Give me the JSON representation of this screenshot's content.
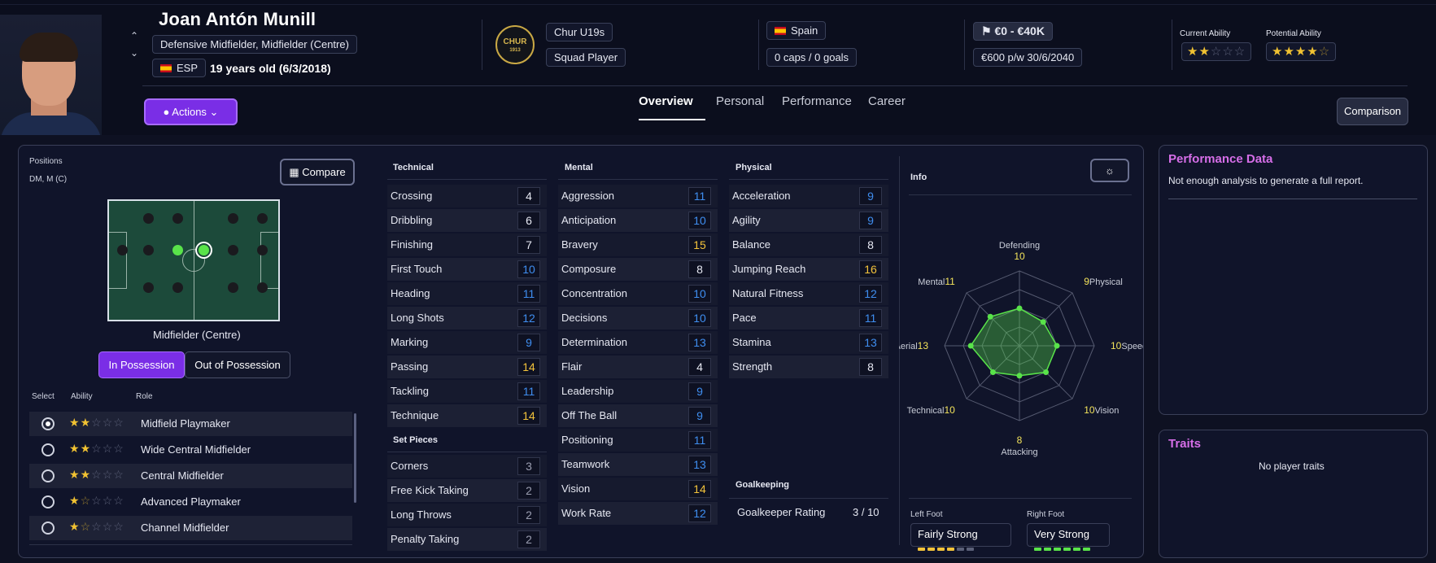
{
  "player": {
    "name": "Joan Antón Munill",
    "positions_full": "Defensive Midfielder, Midfielder (Centre)",
    "nationality_code": "ESP",
    "age": "19 years old (6/3/2018)",
    "club": "Chur U19s",
    "club_badge_text": "CHUR",
    "club_badge_year": "1913",
    "squad_status": "Squad Player",
    "nation": "Spain",
    "caps": "0 caps / 0 goals",
    "value": "€0 - €40K",
    "wage_contract": "€600 p/w 30/6/2040",
    "current_ability_label": "Current Ability",
    "potential_ability_label": "Potential Ability",
    "current_ability_stars": 2,
    "potential_ability_stars": 4.5
  },
  "header": {
    "actions_label": "Actions",
    "comparison_label": "Comparison",
    "tabs": [
      "Overview",
      "Personal",
      "Performance",
      "Career"
    ],
    "active_tab": "Overview"
  },
  "positions": {
    "title": "Positions",
    "value": "DM, M (C)",
    "compare_label": "Compare",
    "pitch_caption": "Midfielder (Centre)",
    "in_possession": "In Possession",
    "out_possession": "Out of Possession",
    "col_select": "Select",
    "col_ability": "Ability",
    "col_role": "Role",
    "roles": [
      {
        "name": "Midfield Playmaker",
        "stars": 2,
        "selected": true
      },
      {
        "name": "Wide Central Midfielder",
        "stars": 2,
        "selected": false
      },
      {
        "name": "Central Midfielder",
        "stars": 2,
        "selected": false
      },
      {
        "name": "Advanced Playmaker",
        "stars": 1.5,
        "selected": false
      },
      {
        "name": "Channel Midfielder",
        "stars": 1.5,
        "selected": false
      }
    ]
  },
  "technical": {
    "title": "Technical",
    "items": [
      {
        "name": "Crossing",
        "value": "4",
        "color": "#e6e8f2"
      },
      {
        "name": "Dribbling",
        "value": "6",
        "color": "#e6e8f2"
      },
      {
        "name": "Finishing",
        "value": "7",
        "color": "#e6e8f2"
      },
      {
        "name": "First Touch",
        "value": "10",
        "color": "#3f8ef0"
      },
      {
        "name": "Heading",
        "value": "11",
        "color": "#3f8ef0"
      },
      {
        "name": "Long Shots",
        "value": "12",
        "color": "#3f8ef0"
      },
      {
        "name": "Marking",
        "value": "9",
        "color": "#3f8ef0"
      },
      {
        "name": "Passing",
        "value": "14",
        "color": "#f3c33b"
      },
      {
        "name": "Tackling",
        "value": "11",
        "color": "#3f8ef0"
      },
      {
        "name": "Technique",
        "value": "14",
        "color": "#f3c33b"
      }
    ]
  },
  "set_pieces": {
    "title": "Set Pieces",
    "items": [
      {
        "name": "Corners",
        "value": "3",
        "color": "#9a9db0"
      },
      {
        "name": "Free Kick Taking",
        "value": "2",
        "color": "#9a9db0"
      },
      {
        "name": "Long Throws",
        "value": "2",
        "color": "#9a9db0"
      },
      {
        "name": "Penalty Taking",
        "value": "2",
        "color": "#9a9db0"
      }
    ]
  },
  "mental": {
    "title": "Mental",
    "items": [
      {
        "name": "Aggression",
        "value": "11",
        "color": "#3f8ef0"
      },
      {
        "name": "Anticipation",
        "value": "10",
        "color": "#3f8ef0"
      },
      {
        "name": "Bravery",
        "value": "15",
        "color": "#f3c33b"
      },
      {
        "name": "Composure",
        "value": "8",
        "color": "#e6e8f2"
      },
      {
        "name": "Concentration",
        "value": "10",
        "color": "#3f8ef0"
      },
      {
        "name": "Decisions",
        "value": "10",
        "color": "#3f8ef0"
      },
      {
        "name": "Determination",
        "value": "13",
        "color": "#3f8ef0"
      },
      {
        "name": "Flair",
        "value": "4",
        "color": "#e6e8f2"
      },
      {
        "name": "Leadership",
        "value": "9",
        "color": "#3f8ef0"
      },
      {
        "name": "Off The Ball",
        "value": "9",
        "color": "#3f8ef0"
      },
      {
        "name": "Positioning",
        "value": "11",
        "color": "#3f8ef0"
      },
      {
        "name": "Teamwork",
        "value": "13",
        "color": "#3f8ef0"
      },
      {
        "name": "Vision",
        "value": "14",
        "color": "#f3c33b"
      },
      {
        "name": "Work Rate",
        "value": "12",
        "color": "#3f8ef0"
      }
    ]
  },
  "physical": {
    "title": "Physical",
    "items": [
      {
        "name": "Acceleration",
        "value": "9",
        "color": "#3f8ef0"
      },
      {
        "name": "Agility",
        "value": "9",
        "color": "#3f8ef0"
      },
      {
        "name": "Balance",
        "value": "8",
        "color": "#e6e8f2"
      },
      {
        "name": "Jumping Reach",
        "value": "16",
        "color": "#f3c33b"
      },
      {
        "name": "Natural Fitness",
        "value": "12",
        "color": "#3f8ef0"
      },
      {
        "name": "Pace",
        "value": "11",
        "color": "#3f8ef0"
      },
      {
        "name": "Stamina",
        "value": "13",
        "color": "#3f8ef0"
      },
      {
        "name": "Strength",
        "value": "8",
        "color": "#e6e8f2"
      }
    ]
  },
  "goalkeeping": {
    "title": "Goalkeeping",
    "label": "Goalkeeper Rating",
    "value": "3 / 10"
  },
  "info": {
    "title": "Info",
    "radar": [
      {
        "label": "Defending",
        "value": "10"
      },
      {
        "label": "Physical",
        "value": "9"
      },
      {
        "label": "Speed",
        "value": "10"
      },
      {
        "label": "Vision",
        "value": "10"
      },
      {
        "label": "Attacking",
        "value": "8"
      },
      {
        "label": "Technical",
        "value": "10"
      },
      {
        "label": "Aerial",
        "value": "13"
      },
      {
        "label": "Mental",
        "value": "11"
      }
    ],
    "left_foot_label": "Left Foot",
    "left_foot": "Fairly Strong",
    "left_foot_level": 4,
    "right_foot_label": "Right Foot",
    "right_foot": "Very Strong",
    "right_foot_level": 6
  },
  "performance": {
    "title": "Performance Data",
    "text": "Not enough analysis to generate a full report."
  },
  "traits": {
    "title": "Traits",
    "text": "No player traits"
  },
  "colors": {
    "accent": "#7a2ee6",
    "gold": "#f3c33b",
    "blue": "#3f8ef0",
    "pink": "#d66ee8"
  }
}
